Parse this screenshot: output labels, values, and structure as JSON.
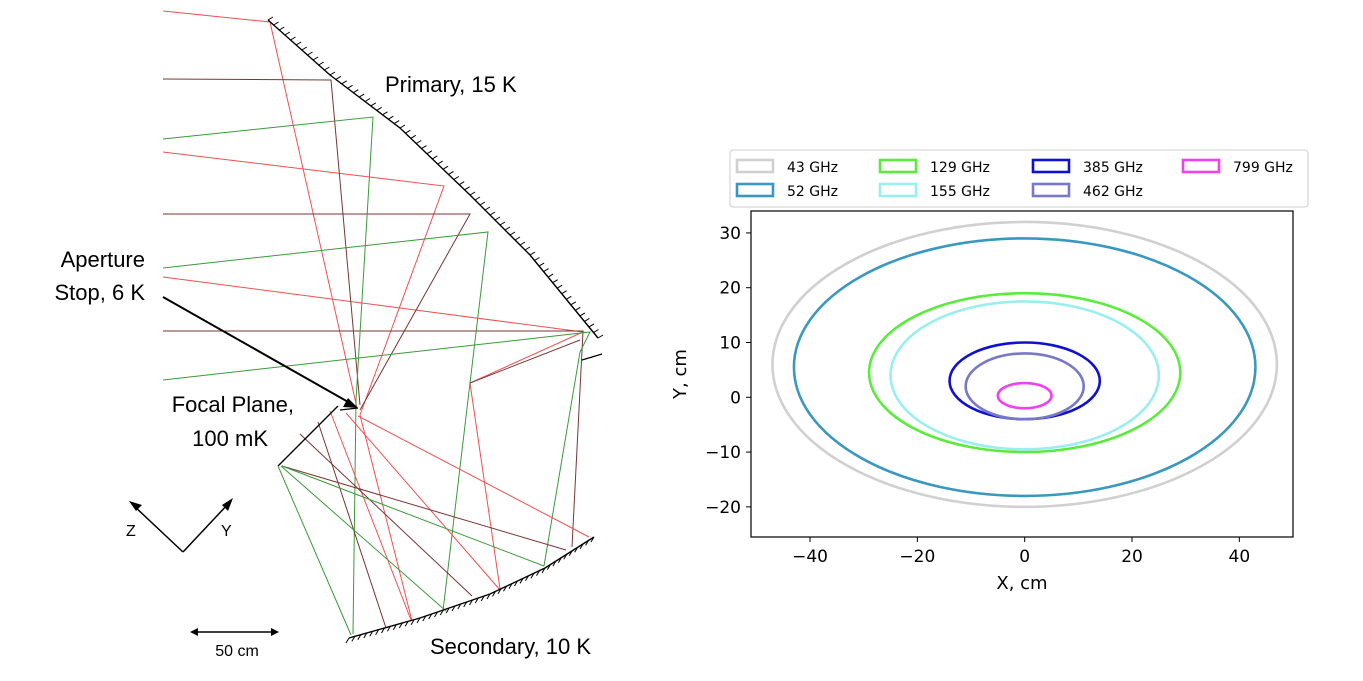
{
  "diagram": {
    "labels": {
      "primary": "Primary, 15 K",
      "aperture_line1": "Aperture",
      "aperture_line2": "Stop, 6 K",
      "focal_line1": "Focal Plane,",
      "focal_line2": "100 mK",
      "secondary": "Secondary, 10 K",
      "axis_z": "Z",
      "axis_y": "Y",
      "scale": "50 cm"
    },
    "colors": {
      "red_ray": "#f05050",
      "green_ray": "#3a9a3a",
      "dark_ray": "#7a3535",
      "mirror": "#000000"
    }
  },
  "chart_data": {
    "type": "line",
    "title": "",
    "xlabel": "X,  cm",
    "ylabel": "Y,  cm",
    "xlim": [
      -51,
      50
    ],
    "ylim": [
      -25.5,
      34
    ],
    "xticks": [
      -40,
      -20,
      0,
      20,
      40
    ],
    "yticks": [
      -20,
      -10,
      0,
      10,
      20,
      30
    ],
    "grid": false,
    "legend_position": "top, above plot, 4 columns",
    "series": [
      {
        "name": "43 GHz",
        "color": "#d0d0d0",
        "cx": 0,
        "cy": 6,
        "rx": 47,
        "ry": 26
      },
      {
        "name": "52 GHz",
        "color": "#3a98c0",
        "cx": 0,
        "cy": 5.5,
        "rx": 43,
        "ry": 23.5
      },
      {
        "name": "129 GHz",
        "color": "#5aec3c",
        "cx": 0,
        "cy": 4.5,
        "rx": 29,
        "ry": 14.5
      },
      {
        "name": "155 GHz",
        "color": "#9aeef0",
        "cx": 0,
        "cy": 4,
        "rx": 25,
        "ry": 13.5
      },
      {
        "name": "385 GHz",
        "color": "#1010d0",
        "cx": 0,
        "cy": 3,
        "rx": 14,
        "ry": 7
      },
      {
        "name": "462 GHz",
        "color": "#7878c8",
        "cx": 0,
        "cy": 2,
        "rx": 11,
        "ry": 6
      },
      {
        "name": "799 GHz",
        "color": "#f040f0",
        "cx": 0,
        "cy": 0.3,
        "rx": 5,
        "ry": 2.3
      }
    ]
  }
}
